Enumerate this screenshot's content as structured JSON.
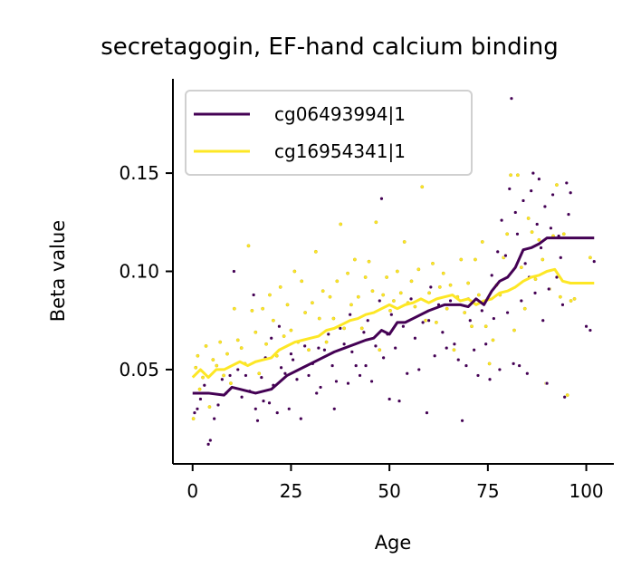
{
  "chart_data": {
    "type": "scatter",
    "title": "secretagogin, EF-hand calcium binding",
    "xlabel": "Age",
    "ylabel": "Beta value",
    "xlim": [
      -5,
      107
    ],
    "ylim": [
      0.002,
      0.198
    ],
    "xticks": [
      0,
      25,
      50,
      75,
      100
    ],
    "yticks": [
      0.05,
      0.1,
      0.15
    ],
    "xtick_labels": [
      "0",
      "25",
      "50",
      "75",
      "100"
    ],
    "ytick_labels": [
      "0.05",
      "0.10",
      "0.15"
    ],
    "legend_position": "upper-left",
    "grid": false,
    "series": [
      {
        "name": "cg06493994|1",
        "color": "#440154",
        "marker": "o",
        "trend": {
          "x": [
            0,
            4,
            8,
            10,
            12,
            16,
            20,
            24,
            28,
            32,
            36,
            40,
            44,
            46,
            48,
            50,
            52,
            54,
            56,
            60,
            64,
            68,
            70,
            72,
            74,
            76,
            78,
            80,
            82,
            84,
            86,
            88,
            90,
            92,
            96,
            102
          ],
          "y": [
            0.038,
            0.038,
            0.037,
            0.041,
            0.04,
            0.038,
            0.04,
            0.047,
            0.051,
            0.055,
            0.059,
            0.062,
            0.065,
            0.066,
            0.07,
            0.068,
            0.074,
            0.074,
            0.076,
            0.08,
            0.083,
            0.083,
            0.082,
            0.086,
            0.083,
            0.09,
            0.095,
            0.097,
            0.102,
            0.111,
            0.112,
            0.114,
            0.117,
            0.117,
            0.117,
            0.117
          ]
        },
        "points": [
          [
            0.5,
            0.028
          ],
          [
            1.2,
            0.03
          ],
          [
            2.0,
            0.035
          ],
          [
            3.0,
            0.042
          ],
          [
            4.0,
            0.012
          ],
          [
            4.5,
            0.014
          ],
          [
            5.5,
            0.025
          ],
          [
            6.5,
            0.032
          ],
          [
            7.5,
            0.045
          ],
          [
            8.5,
            0.038
          ],
          [
            9.5,
            0.047
          ],
          [
            10.5,
            0.1
          ],
          [
            11.5,
            0.05
          ],
          [
            12.5,
            0.036
          ],
          [
            13.5,
            0.047
          ],
          [
            14.5,
            0.039
          ],
          [
            15.5,
            0.088
          ],
          [
            16.0,
            0.03
          ],
          [
            16.5,
            0.024
          ],
          [
            17.5,
            0.046
          ],
          [
            18.0,
            0.034
          ],
          [
            18.5,
            0.056
          ],
          [
            19.5,
            0.033
          ],
          [
            20.0,
            0.066
          ],
          [
            20.5,
            0.042
          ],
          [
            21.5,
            0.028
          ],
          [
            22.0,
            0.072
          ],
          [
            22.5,
            0.051
          ],
          [
            23.5,
            0.048
          ],
          [
            24.5,
            0.03
          ],
          [
            25.0,
            0.058
          ],
          [
            25.5,
            0.055
          ],
          [
            26.5,
            0.045
          ],
          [
            27.5,
            0.025
          ],
          [
            28.5,
            0.062
          ],
          [
            29.5,
            0.047
          ],
          [
            30.5,
            0.053
          ],
          [
            31.5,
            0.038
          ],
          [
            32.0,
            0.061
          ],
          [
            32.5,
            0.041
          ],
          [
            33.5,
            0.06
          ],
          [
            34.5,
            0.068
          ],
          [
            35.5,
            0.052
          ],
          [
            36.0,
            0.03
          ],
          [
            36.5,
            0.044
          ],
          [
            37.5,
            0.071
          ],
          [
            38.5,
            0.063
          ],
          [
            39.5,
            0.043
          ],
          [
            40.0,
            0.078
          ],
          [
            40.5,
            0.059
          ],
          [
            41.5,
            0.052
          ],
          [
            42.5,
            0.047
          ],
          [
            43.5,
            0.069
          ],
          [
            44.0,
            0.052
          ],
          [
            44.5,
            0.075
          ],
          [
            45.5,
            0.044
          ],
          [
            46.5,
            0.062
          ],
          [
            47.5,
            0.085
          ],
          [
            48.0,
            0.137
          ],
          [
            48.5,
            0.056
          ],
          [
            49.5,
            0.068
          ],
          [
            50.0,
            0.035
          ],
          [
            50.5,
            0.078
          ],
          [
            51.5,
            0.061
          ],
          [
            52.5,
            0.034
          ],
          [
            53.5,
            0.072
          ],
          [
            54.5,
            0.048
          ],
          [
            55.5,
            0.086
          ],
          [
            56.5,
            0.066
          ],
          [
            57.5,
            0.05
          ],
          [
            58.5,
            0.074
          ],
          [
            59.5,
            0.028
          ],
          [
            60.0,
            0.075
          ],
          [
            60.5,
            0.092
          ],
          [
            61.5,
            0.057
          ],
          [
            62.5,
            0.083
          ],
          [
            63.5,
            0.069
          ],
          [
            64.5,
            0.061
          ],
          [
            65.5,
            0.085
          ],
          [
            66.5,
            0.063
          ],
          [
            67.5,
            0.055
          ],
          [
            68.5,
            0.024
          ],
          [
            69.5,
            0.052
          ],
          [
            70.0,
            0.086
          ],
          [
            70.5,
            0.075
          ],
          [
            71.5,
            0.06
          ],
          [
            72.5,
            0.047
          ],
          [
            73.5,
            0.08
          ],
          [
            74.5,
            0.063
          ],
          [
            75.5,
            0.045
          ],
          [
            76.0,
            0.098
          ],
          [
            76.5,
            0.076
          ],
          [
            77.5,
            0.11
          ],
          [
            78.0,
            0.05
          ],
          [
            78.5,
            0.126
          ],
          [
            79.5,
            0.108
          ],
          [
            80.0,
            0.079
          ],
          [
            80.5,
            0.142
          ],
          [
            81.0,
            0.188
          ],
          [
            81.5,
            0.053
          ],
          [
            82.0,
            0.13
          ],
          [
            82.5,
            0.119
          ],
          [
            83.0,
            0.052
          ],
          [
            83.5,
            0.085
          ],
          [
            84.0,
            0.136
          ],
          [
            84.5,
            0.104
          ],
          [
            85.0,
            0.048
          ],
          [
            85.5,
            0.097
          ],
          [
            86.0,
            0.141
          ],
          [
            86.5,
            0.15
          ],
          [
            87.0,
            0.089
          ],
          [
            87.5,
            0.124
          ],
          [
            88.0,
            0.147
          ],
          [
            88.5,
            0.112
          ],
          [
            89.0,
            0.075
          ],
          [
            89.5,
            0.133
          ],
          [
            90.0,
            0.043
          ],
          [
            90.5,
            0.091
          ],
          [
            91.0,
            0.122
          ],
          [
            91.5,
            0.139
          ],
          [
            92.5,
            0.097
          ],
          [
            93.0,
            0.118
          ],
          [
            93.5,
            0.107
          ],
          [
            94.0,
            0.083
          ],
          [
            94.5,
            0.036
          ],
          [
            95.0,
            0.145
          ],
          [
            95.5,
            0.129
          ],
          [
            96.0,
            0.14
          ],
          [
            100.0,
            0.072
          ],
          [
            101.0,
            0.07
          ],
          [
            102.0,
            0.105
          ]
        ]
      },
      {
        "name": "cg16954341|1",
        "color": "#fde725",
        "marker": "o",
        "trend": {
          "x": [
            0,
            2,
            4,
            6,
            8,
            10,
            12,
            14,
            16,
            18,
            20,
            22,
            24,
            26,
            28,
            30,
            32,
            34,
            36,
            38,
            40,
            42,
            44,
            46,
            48,
            50,
            52,
            54,
            56,
            58,
            60,
            62,
            64,
            66,
            68,
            70,
            72,
            74,
            76,
            78,
            80,
            82,
            84,
            86,
            88,
            90,
            92,
            94,
            96,
            98,
            102
          ],
          "y": [
            0.046,
            0.05,
            0.046,
            0.05,
            0.05,
            0.052,
            0.054,
            0.052,
            0.054,
            0.055,
            0.056,
            0.06,
            0.062,
            0.064,
            0.065,
            0.066,
            0.067,
            0.07,
            0.071,
            0.073,
            0.075,
            0.076,
            0.078,
            0.079,
            0.081,
            0.083,
            0.081,
            0.083,
            0.084,
            0.086,
            0.084,
            0.086,
            0.087,
            0.088,
            0.085,
            0.086,
            0.083,
            0.085,
            0.086,
            0.089,
            0.09,
            0.092,
            0.095,
            0.097,
            0.098,
            0.1,
            0.101,
            0.095,
            0.094,
            0.094,
            0.094
          ]
        },
        "points": [
          [
            0.2,
            0.025
          ],
          [
            0.8,
            0.051
          ],
          [
            1.3,
            0.057
          ],
          [
            1.8,
            0.04
          ],
          [
            2.6,
            0.046
          ],
          [
            3.4,
            0.062
          ],
          [
            4.3,
            0.031
          ],
          [
            5.2,
            0.055
          ],
          [
            6.1,
            0.052
          ],
          [
            7.0,
            0.064
          ],
          [
            7.9,
            0.047
          ],
          [
            8.8,
            0.058
          ],
          [
            9.7,
            0.043
          ],
          [
            10.6,
            0.081
          ],
          [
            11.5,
            0.065
          ],
          [
            12.4,
            0.061
          ],
          [
            13.3,
            0.053
          ],
          [
            14.2,
            0.113
          ],
          [
            15.1,
            0.08
          ],
          [
            16.0,
            0.069
          ],
          [
            16.9,
            0.048
          ],
          [
            17.8,
            0.081
          ],
          [
            18.7,
            0.063
          ],
          [
            19.6,
            0.088
          ],
          [
            20.5,
            0.075
          ],
          [
            21.4,
            0.057
          ],
          [
            22.3,
            0.092
          ],
          [
            23.2,
            0.067
          ],
          [
            24.1,
            0.083
          ],
          [
            25.0,
            0.07
          ],
          [
            25.9,
            0.1
          ],
          [
            26.8,
            0.064
          ],
          [
            27.7,
            0.095
          ],
          [
            28.6,
            0.079
          ],
          [
            29.5,
            0.06
          ],
          [
            30.4,
            0.084
          ],
          [
            31.3,
            0.11
          ],
          [
            32.2,
            0.076
          ],
          [
            33.1,
            0.09
          ],
          [
            34.0,
            0.064
          ],
          [
            34.9,
            0.087
          ],
          [
            35.8,
            0.076
          ],
          [
            36.7,
            0.095
          ],
          [
            37.6,
            0.124
          ],
          [
            38.5,
            0.071
          ],
          [
            39.4,
            0.099
          ],
          [
            40.3,
            0.083
          ],
          [
            41.2,
            0.106
          ],
          [
            42.1,
            0.087
          ],
          [
            43.0,
            0.071
          ],
          [
            43.9,
            0.097
          ],
          [
            44.8,
            0.105
          ],
          [
            45.7,
            0.09
          ],
          [
            46.6,
            0.125
          ],
          [
            47.5,
            0.06
          ],
          [
            48.4,
            0.088
          ],
          [
            49.3,
            0.097
          ],
          [
            50.2,
            0.08
          ],
          [
            51.1,
            0.085
          ],
          [
            52.0,
            0.1
          ],
          [
            52.9,
            0.089
          ],
          [
            53.8,
            0.115
          ],
          [
            54.7,
            0.084
          ],
          [
            55.6,
            0.095
          ],
          [
            56.5,
            0.082
          ],
          [
            57.4,
            0.101
          ],
          [
            58.3,
            0.143
          ],
          [
            59.2,
            0.075
          ],
          [
            60.1,
            0.089
          ],
          [
            61.0,
            0.104
          ],
          [
            61.9,
            0.074
          ],
          [
            62.8,
            0.092
          ],
          [
            63.7,
            0.099
          ],
          [
            64.6,
            0.081
          ],
          [
            65.5,
            0.093
          ],
          [
            66.4,
            0.06
          ],
          [
            67.3,
            0.087
          ],
          [
            68.2,
            0.106
          ],
          [
            69.1,
            0.079
          ],
          [
            70.0,
            0.094
          ],
          [
            70.9,
            0.072
          ],
          [
            71.8,
            0.106
          ],
          [
            72.7,
            0.088
          ],
          [
            73.6,
            0.115
          ],
          [
            74.5,
            0.072
          ],
          [
            75.4,
            0.053
          ],
          [
            76.3,
            0.065
          ],
          [
            77.2,
            0.093
          ],
          [
            78.1,
            0.088
          ],
          [
            79.0,
            0.107
          ],
          [
            79.9,
            0.119
          ],
          [
            80.8,
            0.149
          ],
          [
            81.7,
            0.07
          ],
          [
            82.6,
            0.149
          ],
          [
            83.5,
            0.102
          ],
          [
            84.4,
            0.081
          ],
          [
            85.3,
            0.127
          ],
          [
            86.2,
            0.12
          ],
          [
            87.1,
            0.096
          ],
          [
            88.0,
            0.116
          ],
          [
            88.9,
            0.106
          ],
          [
            89.8,
            0.043
          ],
          [
            90.7,
            0.091
          ],
          [
            91.6,
            0.118
          ],
          [
            92.5,
            0.144
          ],
          [
            93.4,
            0.087
          ],
          [
            94.3,
            0.119
          ],
          [
            95.2,
            0.037
          ],
          [
            96.1,
            0.085
          ],
          [
            97.0,
            0.086
          ],
          [
            101.0,
            0.107
          ]
        ]
      }
    ]
  }
}
